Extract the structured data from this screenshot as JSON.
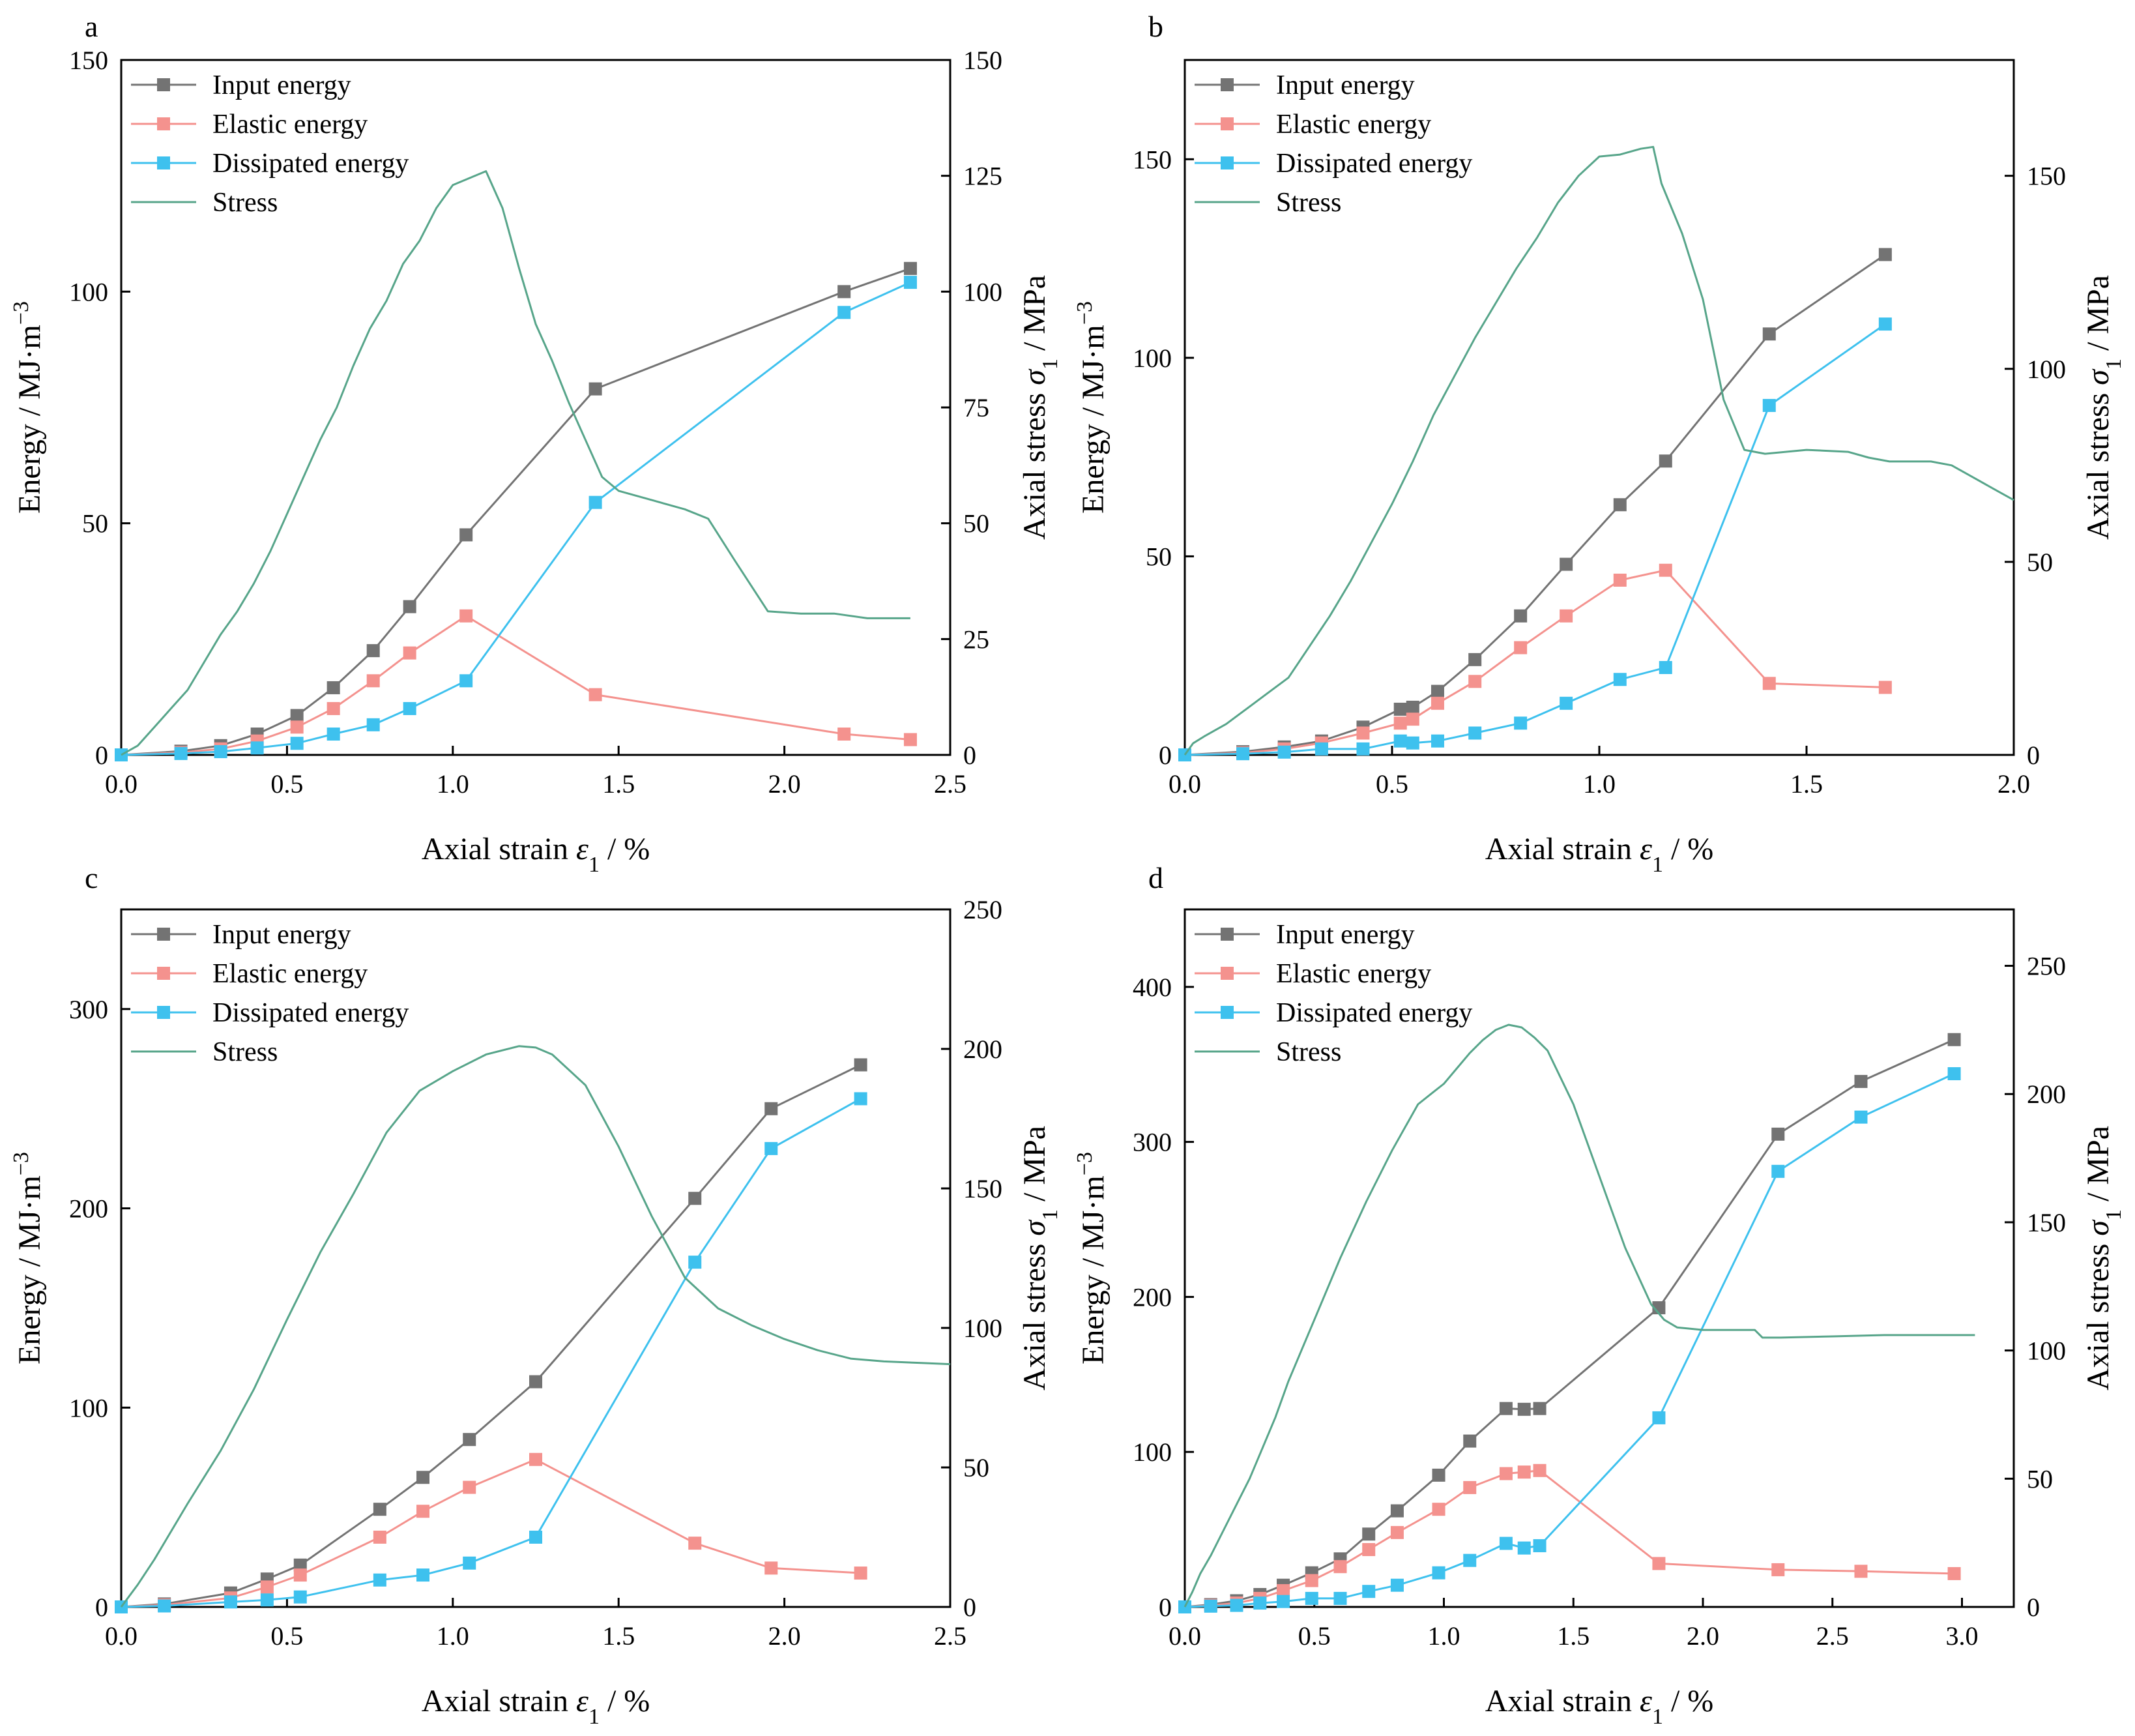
{
  "figure": {
    "colors": {
      "input": "#737373",
      "elastic": "#F4928E",
      "dissipated": "#3EC1EE",
      "stress": "#57A58A",
      "axis": "#000000"
    },
    "legend_labels": [
      "Input energy",
      "Elastic energy",
      "Dissipated energy",
      "Stress"
    ]
  },
  "chart_data": [
    {
      "panel": "a",
      "type": "line",
      "xlabel": "Axial strain ε1 / %",
      "ylabel": "Energy / MJ·m−3",
      "y2label": "Axial stress σ1 / MPa",
      "xlim": [
        0,
        2.5
      ],
      "ylim": [
        0,
        150
      ],
      "y2lim": [
        0,
        150
      ],
      "xticks": [
        "0.0",
        "0.5",
        "1.0",
        "1.5",
        "2.0",
        "2.5"
      ],
      "yticks": [
        "0",
        "50",
        "100",
        "150"
      ],
      "y2ticks": [
        "0",
        "25",
        "50",
        "75",
        "100",
        "125",
        "150"
      ],
      "series": [
        {
          "name": "Input energy",
          "x": [
            0,
            0.18,
            0.3,
            0.41,
            0.53,
            0.64,
            0.76,
            0.87,
            1.04,
            1.43,
            2.18,
            2.38
          ],
          "values": [
            0,
            0.8,
            2,
            4.5,
            8.5,
            14.5,
            22.5,
            32,
            47.5,
            79,
            100,
            105
          ]
        },
        {
          "name": "Elastic energy",
          "x": [
            0,
            0.18,
            0.3,
            0.41,
            0.53,
            0.64,
            0.76,
            0.87,
            1.04,
            1.43,
            2.18,
            2.38
          ],
          "values": [
            0,
            0.5,
            1.3,
            3,
            6,
            10,
            16,
            22,
            30,
            13,
            4.5,
            3.3
          ]
        },
        {
          "name": "Dissipated energy",
          "x": [
            0,
            0.18,
            0.3,
            0.41,
            0.53,
            0.64,
            0.76,
            0.87,
            1.04,
            1.43,
            2.18,
            2.38
          ],
          "values": [
            0,
            0.3,
            0.7,
            1.5,
            2.5,
            4.5,
            6.5,
            10,
            16,
            54.5,
            95.5,
            102
          ]
        },
        {
          "name": "Stress",
          "axis": "right",
          "x": [
            0,
            0.05,
            0.1,
            0.15,
            0.2,
            0.25,
            0.3,
            0.35,
            0.4,
            0.45,
            0.5,
            0.55,
            0.6,
            0.65,
            0.7,
            0.75,
            0.8,
            0.85,
            0.9,
            0.95,
            1.0,
            1.05,
            1.1,
            1.15,
            1.2,
            1.25,
            1.3,
            1.35,
            1.4,
            1.45,
            1.5,
            1.6,
            1.7,
            1.77,
            1.85,
            1.95,
            2.05,
            2.15,
            2.25,
            2.38
          ],
          "values": [
            0,
            2,
            6,
            10,
            14,
            20,
            26,
            31,
            37,
            44,
            52,
            60,
            68,
            75,
            84,
            92,
            98,
            106,
            111,
            118,
            123,
            124.5,
            126,
            118,
            105,
            93,
            85,
            76,
            68,
            60,
            57,
            55,
            53,
            51,
            42,
            31,
            30.5,
            30.5,
            29.5,
            29.5
          ]
        }
      ]
    },
    {
      "panel": "b",
      "type": "line",
      "xlabel": "Axial strain ε1 / %",
      "ylabel": "Energy / MJ·m−3",
      "y2label": "Axial stress σ1 / MPa",
      "xlim": [
        0,
        2.0
      ],
      "ylim": [
        0,
        175
      ],
      "y2lim": [
        0,
        180
      ],
      "xticks": [
        "0.0",
        "0.5",
        "1.0",
        "1.5",
        "2.0"
      ],
      "yticks": [
        "0",
        "50",
        "100",
        "150"
      ],
      "y2ticks": [
        "0",
        "50",
        "100",
        "150"
      ],
      "series": [
        {
          "name": "Input energy",
          "x": [
            0,
            0.14,
            0.24,
            0.33,
            0.43,
            0.52,
            0.55,
            0.61,
            0.7,
            0.81,
            0.92,
            1.05,
            1.16,
            1.41,
            1.69
          ],
          "values": [
            0,
            0.8,
            2,
            3.5,
            7,
            11.5,
            12,
            16,
            24,
            35,
            48,
            63,
            74,
            106,
            126
          ]
        },
        {
          "name": "Elastic energy",
          "x": [
            0,
            0.14,
            0.24,
            0.33,
            0.43,
            0.52,
            0.55,
            0.61,
            0.7,
            0.81,
            0.92,
            1.05,
            1.16,
            1.41,
            1.69
          ],
          "values": [
            0,
            0.5,
            1.5,
            3,
            5.5,
            8,
            9,
            13,
            18.5,
            27,
            35,
            44,
            46.5,
            18,
            17
          ]
        },
        {
          "name": "Dissipated energy",
          "x": [
            0,
            0.14,
            0.24,
            0.33,
            0.43,
            0.52,
            0.55,
            0.61,
            0.7,
            0.81,
            0.92,
            1.05,
            1.16,
            1.41,
            1.69
          ],
          "values": [
            0,
            0.3,
            0.7,
            1.5,
            1.5,
            3.5,
            3,
            3.5,
            5.5,
            8,
            13,
            19,
            22,
            88,
            108.5
          ]
        },
        {
          "name": "Stress",
          "axis": "right",
          "x": [
            0,
            0.02,
            0.05,
            0.1,
            0.15,
            0.2,
            0.25,
            0.3,
            0.35,
            0.4,
            0.45,
            0.5,
            0.55,
            0.6,
            0.65,
            0.7,
            0.75,
            0.8,
            0.85,
            0.9,
            0.95,
            1.0,
            1.05,
            1.1,
            1.13,
            1.15,
            1.2,
            1.25,
            1.3,
            1.35,
            1.4,
            1.5,
            1.6,
            1.65,
            1.7,
            1.8,
            1.85,
            1.9,
            1.95,
            2.0
          ],
          "values": [
            0,
            3,
            5,
            8,
            12,
            16,
            20,
            28,
            36,
            45,
            55,
            65,
            76,
            88,
            98,
            108,
            117,
            126,
            134,
            143,
            150,
            155,
            155.5,
            157,
            157.5,
            148,
            135,
            118,
            92,
            79,
            78,
            79,
            78.5,
            77,
            76,
            76,
            75,
            72,
            69,
            66
          ]
        }
      ]
    },
    {
      "panel": "c",
      "type": "line",
      "xlabel": "Axial strain ε1 / %",
      "ylabel": "Energy / MJ·m−3",
      "y2label": "Axial stress σ1 / MPa",
      "xlim": [
        0,
        2.5
      ],
      "ylim": [
        0,
        350
      ],
      "y2lim": [
        0,
        250
      ],
      "xticks": [
        "0.0",
        "0.5",
        "1.0",
        "1.5",
        "2.0",
        "2.5"
      ],
      "yticks": [
        "0",
        "100",
        "200",
        "300"
      ],
      "y2ticks": [
        "0",
        "50",
        "100",
        "150",
        "200",
        "250"
      ],
      "series": [
        {
          "name": "Input energy",
          "x": [
            0,
            0.13,
            0.33,
            0.44,
            0.54,
            0.78,
            0.91,
            1.05,
            1.25,
            1.73,
            1.96,
            2.23
          ],
          "values": [
            0,
            1.5,
            7,
            14,
            21,
            49,
            65,
            84,
            113,
            205,
            250,
            272
          ]
        },
        {
          "name": "Elastic energy",
          "x": [
            0,
            0.13,
            0.33,
            0.44,
            0.54,
            0.78,
            0.91,
            1.05,
            1.25,
            1.73,
            1.96,
            2.23
          ],
          "values": [
            0,
            1,
            4.5,
            10,
            16,
            35,
            48,
            60,
            74,
            32,
            19.5,
            17
          ]
        },
        {
          "name": "Dissipated energy",
          "x": [
            0,
            0.13,
            0.33,
            0.44,
            0.54,
            0.78,
            0.91,
            1.05,
            1.25,
            1.73,
            1.96,
            2.23
          ],
          "values": [
            0,
            0.5,
            2.5,
            3.5,
            5,
            13.5,
            16,
            22,
            35,
            173,
            230,
            255
          ]
        },
        {
          "name": "Stress",
          "axis": "right",
          "x": [
            0,
            0.05,
            0.1,
            0.2,
            0.3,
            0.4,
            0.5,
            0.6,
            0.7,
            0.8,
            0.9,
            1.0,
            1.1,
            1.2,
            1.25,
            1.3,
            1.4,
            1.5,
            1.6,
            1.7,
            1.8,
            1.9,
            2.0,
            2.1,
            2.2,
            2.3,
            2.4,
            2.5
          ],
          "values": [
            0,
            8,
            17,
            37,
            56,
            78,
            103,
            127,
            148,
            170,
            185,
            192,
            198,
            201,
            200.5,
            198,
            187,
            165,
            140,
            118,
            107,
            101,
            96,
            92,
            89,
            88,
            87.5,
            87
          ]
        }
      ]
    },
    {
      "panel": "d",
      "type": "line",
      "xlabel": "Axial strain ε1 / %",
      "ylabel": "Energy / MJ·m−3",
      "y2label": "Axial stress σ1 / MPa",
      "xlim": [
        0,
        3.2
      ],
      "ylim": [
        0,
        450
      ],
      "y2lim": [
        0,
        272
      ],
      "xticks": [
        "0.0",
        "0.5",
        "1.0",
        "1.5",
        "2.0",
        "2.5",
        "3.0"
      ],
      "yticks": [
        "0",
        "100",
        "200",
        "300",
        "400"
      ],
      "y2ticks": [
        "0",
        "50",
        "100",
        "150",
        "200",
        "250"
      ],
      "series": [
        {
          "name": "Input energy",
          "x": [
            0,
            0.1,
            0.2,
            0.29,
            0.38,
            0.49,
            0.6,
            0.71,
            0.82,
            0.98,
            1.1,
            1.24,
            1.31,
            1.37,
            1.83,
            2.29,
            2.61,
            2.97
          ],
          "values": [
            0,
            1.5,
            4,
            8,
            14,
            22,
            31,
            47,
            62,
            85,
            107,
            128,
            127.5,
            128,
            193,
            305,
            339,
            366
          ]
        },
        {
          "name": "Elastic energy",
          "x": [
            0,
            0.1,
            0.2,
            0.29,
            0.38,
            0.49,
            0.6,
            0.71,
            0.82,
            0.98,
            1.1,
            1.24,
            1.31,
            1.37,
            1.83,
            2.29,
            2.61,
            2.97
          ],
          "values": [
            0,
            1,
            2.5,
            5.5,
            10.5,
            17,
            26,
            37,
            48,
            63,
            77,
            86,
            87,
            88,
            28,
            24,
            23,
            21.5
          ]
        },
        {
          "name": "Dissipated energy",
          "x": [
            0,
            0.1,
            0.2,
            0.29,
            0.38,
            0.49,
            0.6,
            0.71,
            0.82,
            0.98,
            1.1,
            1.24,
            1.31,
            1.37,
            1.83,
            2.29,
            2.61,
            2.97
          ],
          "values": [
            0,
            0.5,
            1,
            2.5,
            3.5,
            5.5,
            5.5,
            10,
            14,
            22,
            30,
            41,
            38,
            39.5,
            122,
            281,
            316,
            344
          ]
        },
        {
          "name": "Stress",
          "axis": "right",
          "x": [
            0,
            0.03,
            0.06,
            0.1,
            0.15,
            0.2,
            0.25,
            0.3,
            0.35,
            0.4,
            0.5,
            0.6,
            0.7,
            0.8,
            0.9,
            0.95,
            1.0,
            1.05,
            1.1,
            1.15,
            1.2,
            1.25,
            1.3,
            1.35,
            1.4,
            1.5,
            1.6,
            1.7,
            1.8,
            1.85,
            1.9,
            2.0,
            2.1,
            2.2,
            2.23,
            2.3,
            2.5,
            2.7,
            2.9,
            3.05
          ],
          "values": [
            0,
            6,
            13,
            20,
            30,
            40,
            50,
            62,
            74,
            88,
            112,
            136,
            158,
            178,
            196,
            200,
            204,
            210,
            216,
            221,
            225,
            227,
            226,
            222,
            217,
            196,
            168,
            140,
            118,
            112,
            109,
            108,
            108,
            108,
            105,
            105,
            105.5,
            106,
            106,
            106
          ]
        }
      ]
    }
  ]
}
